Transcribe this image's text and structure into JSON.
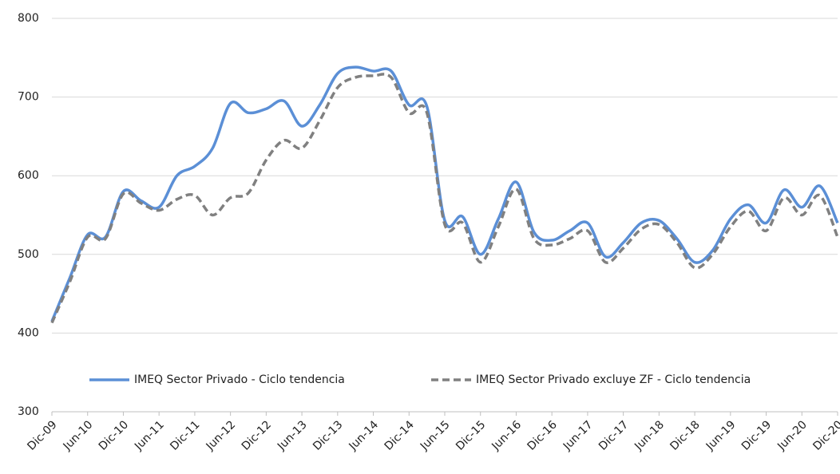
{
  "chart_data": {
    "type": "line",
    "categories": [
      "Dic-09",
      null,
      "Jun-10",
      null,
      "Dic-10",
      null,
      "Jun-11",
      null,
      "Dic-11",
      null,
      "Jun-12",
      null,
      "Dic-12",
      null,
      "Jun-13",
      null,
      "Dic-13",
      null,
      "Jun-14",
      null,
      "Dic-14",
      null,
      "Jun-15",
      null,
      "Dic-15",
      null,
      "Jun-16",
      null,
      "Dic-16",
      null,
      "Jun-17",
      null,
      "Dic-17",
      null,
      "Jun-18",
      null,
      "Dic-18",
      null,
      "Jun-19",
      null,
      "Dic-19",
      null,
      "Jun-20",
      null,
      "Dic-20"
    ],
    "series": [
      {
        "name": "IMEQ Sector Privado - Ciclo tendencia",
        "color": "#5b8fd6",
        "dash": false,
        "values": [
          415,
          470,
          525,
          522,
          580,
          568,
          560,
          600,
          612,
          635,
          692,
          680,
          685,
          695,
          663,
          690,
          730,
          738,
          733,
          733,
          690,
          688,
          543,
          548,
          500,
          545,
          592,
          528,
          518,
          530,
          540,
          497,
          515,
          540,
          543,
          520,
          490,
          505,
          545,
          563,
          540,
          582,
          560,
          587,
          540
        ]
      },
      {
        "name": "IMEQ Sector Privado excluye ZF - Ciclo tendencia",
        "color": "#808080",
        "dash": true,
        "values": [
          413,
          465,
          522,
          520,
          577,
          565,
          556,
          570,
          575,
          550,
          572,
          578,
          620,
          645,
          635,
          670,
          712,
          725,
          727,
          725,
          680,
          680,
          538,
          540,
          490,
          535,
          583,
          520,
          512,
          520,
          530,
          490,
          508,
          532,
          538,
          515,
          483,
          500,
          535,
          555,
          530,
          572,
          550,
          575,
          522
        ]
      }
    ],
    "ylim": [
      300,
      800
    ],
    "yticks": [
      300,
      400,
      500,
      600,
      700,
      800
    ],
    "grid": true,
    "legend": "bottom"
  }
}
